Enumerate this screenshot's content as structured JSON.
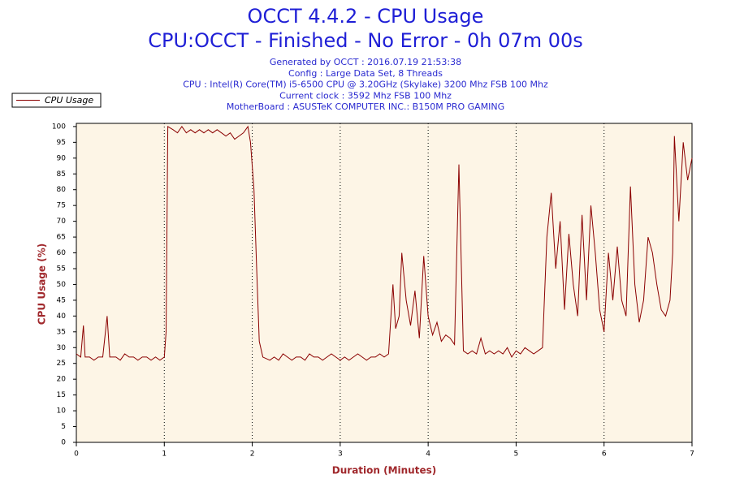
{
  "chart_data": {
    "type": "line",
    "title": "OCCT 4.4.2 - CPU Usage",
    "subtitle": "CPU:OCCT - Finished - No Error - 0h 07m 00s",
    "info_lines": [
      "Generated by OCCT : 2016.07.19 21:53:38",
      "Config : Large Data Set, 8 Threads",
      "CPU : Intel(R) Core(TM) i5-6500 CPU @ 3.20GHz (Skylake) 3200 Mhz FSB 100 Mhz",
      "Current clock : 3592 Mhz FSB 100 Mhz",
      "MotherBoard : ASUSTeK COMPUTER INC.: B150M PRO GAMING"
    ],
    "x_label": "Duration (Minutes)",
    "y_label": "CPU Usage (%)",
    "xlim": [
      0,
      7
    ],
    "ylim": [
      0,
      101
    ],
    "xticks": [
      0,
      1,
      2,
      3,
      4,
      5,
      6,
      7
    ],
    "yticks": [
      0,
      5,
      10,
      15,
      20,
      25,
      30,
      35,
      40,
      45,
      50,
      55,
      60,
      65,
      70,
      75,
      80,
      85,
      90,
      95,
      100
    ],
    "grid": "x",
    "legend": "top-left",
    "plot_background": "#fdf5e6",
    "x": [
      0,
      0.05,
      0.08,
      0.1,
      0.15,
      0.2,
      0.25,
      0.3,
      0.35,
      0.38,
      0.45,
      0.5,
      0.55,
      0.6,
      0.65,
      0.7,
      0.75,
      0.8,
      0.85,
      0.9,
      0.95,
      1.0,
      1.02,
      1.04,
      1.1,
      1.15,
      1.2,
      1.25,
      1.3,
      1.35,
      1.4,
      1.45,
      1.5,
      1.55,
      1.6,
      1.65,
      1.7,
      1.75,
      1.8,
      1.85,
      1.9,
      1.95,
      1.98,
      2.02,
      2.05,
      2.08,
      2.12,
      2.2,
      2.25,
      2.3,
      2.35,
      2.4,
      2.45,
      2.5,
      2.55,
      2.6,
      2.65,
      2.7,
      2.75,
      2.8,
      2.85,
      2.9,
      2.95,
      3.0,
      3.05,
      3.1,
      3.15,
      3.2,
      3.25,
      3.3,
      3.35,
      3.4,
      3.45,
      3.5,
      3.55,
      3.6,
      3.63,
      3.67,
      3.7,
      3.75,
      3.8,
      3.85,
      3.9,
      3.95,
      4.0,
      4.05,
      4.1,
      4.15,
      4.2,
      4.25,
      4.3,
      4.35,
      4.4,
      4.45,
      4.5,
      4.55,
      4.6,
      4.65,
      4.7,
      4.75,
      4.8,
      4.85,
      4.9,
      4.95,
      5.0,
      5.05,
      5.1,
      5.15,
      5.2,
      5.25,
      5.3,
      5.35,
      5.4,
      5.45,
      5.5,
      5.55,
      5.6,
      5.65,
      5.7,
      5.75,
      5.8,
      5.85,
      5.9,
      5.95,
      6.0,
      6.05,
      6.1,
      6.15,
      6.2,
      6.25,
      6.3,
      6.35,
      6.4,
      6.45,
      6.5,
      6.55,
      6.6,
      6.65,
      6.7,
      6.75,
      6.78,
      6.8,
      6.85,
      6.9,
      6.95,
      7.0
    ],
    "series": [
      {
        "name": "CPU Usage",
        "color": "#8b0000",
        "values": [
          28,
          27,
          37,
          27,
          27,
          26,
          27,
          27,
          40,
          27,
          27,
          26,
          28,
          27,
          27,
          26,
          27,
          27,
          26,
          27,
          26,
          27,
          35,
          100,
          99,
          98,
          100,
          98,
          99,
          98,
          99,
          98,
          99,
          98,
          99,
          98,
          97,
          98,
          96,
          97,
          98,
          100,
          95,
          80,
          55,
          32,
          27,
          26,
          27,
          26,
          28,
          27,
          26,
          27,
          27,
          26,
          28,
          27,
          27,
          26,
          27,
          28,
          27,
          26,
          27,
          26,
          27,
          28,
          27,
          26,
          27,
          27,
          28,
          27,
          28,
          50,
          36,
          40,
          60,
          45,
          37,
          48,
          33,
          59,
          40,
          34,
          38,
          32,
          34,
          33,
          31,
          88,
          29,
          28,
          29,
          28,
          33,
          28,
          29,
          28,
          29,
          28,
          30,
          27,
          29,
          28,
          30,
          29,
          28,
          29,
          30,
          65,
          79,
          55,
          70,
          42,
          66,
          50,
          40,
          72,
          45,
          75,
          60,
          42,
          35,
          60,
          45,
          62,
          45,
          40,
          81,
          50,
          38,
          45,
          65,
          60,
          50,
          42,
          40,
          45,
          60,
          97,
          70,
          95,
          83,
          90
        ]
      }
    ]
  }
}
